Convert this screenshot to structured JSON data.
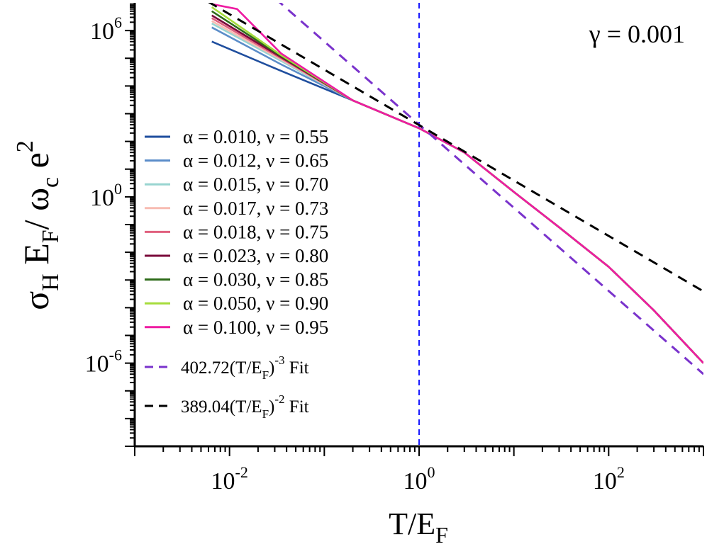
{
  "chart_data": {
    "type": "line",
    "scale": "log-log",
    "annotation": "γ = 0.001",
    "xlabel": "T/E_F",
    "ylabel": "σ_H E_F / ω_c e^2",
    "xlim": [
      0.001,
      1000
    ],
    "ylim": [
      1e-09,
      10000000.0
    ],
    "x_ticks": [
      {
        "value": 0.01,
        "base": "10",
        "exp": "-2"
      },
      {
        "value": 1,
        "base": "10",
        "exp": "0"
      },
      {
        "value": 100,
        "base": "10",
        "exp": "2"
      }
    ],
    "y_ticks": [
      {
        "value": 1e-06,
        "base": "10",
        "exp": "-6"
      },
      {
        "value": 1,
        "base": "10",
        "exp": "0"
      },
      {
        "value": 1000000.0,
        "base": "10",
        "exp": "6"
      }
    ],
    "vline_x": 1,
    "series": [
      {
        "alpha": "0.010",
        "nu": "0.55",
        "color": "#1f4e9e",
        "points": [
          [
            0.0065,
            400000.0
          ],
          [
            0.035,
            35000.0
          ],
          [
            0.2,
            3000
          ],
          [
            1,
            300
          ],
          [
            3,
            40
          ],
          [
            10,
            1.5
          ],
          [
            30,
            0.08
          ],
          [
            100,
            0.003
          ],
          [
            300,
            8e-05
          ],
          [
            1000,
            1e-06
          ]
        ]
      },
      {
        "alpha": "0.012",
        "nu": "0.65",
        "color": "#5b8dc9",
        "points": [
          [
            0.0065,
            1300000.0
          ],
          [
            0.035,
            60000.0
          ],
          [
            0.2,
            3000
          ],
          [
            1,
            300
          ],
          [
            3,
            40
          ],
          [
            10,
            1.5
          ],
          [
            30,
            0.08
          ],
          [
            100,
            0.003
          ],
          [
            300,
            8e-05
          ],
          [
            1000,
            1e-06
          ]
        ]
      },
      {
        "alpha": "0.015",
        "nu": "0.70",
        "color": "#98d4d0",
        "points": [
          [
            0.0065,
            1800000.0
          ],
          [
            0.035,
            80000.0
          ],
          [
            0.2,
            3000
          ],
          [
            1,
            300
          ],
          [
            3,
            40
          ],
          [
            10,
            1.5
          ],
          [
            30,
            0.08
          ],
          [
            100,
            0.003
          ],
          [
            300,
            8e-05
          ],
          [
            1000,
            1e-06
          ]
        ]
      },
      {
        "alpha": "0.017",
        "nu": "0.73",
        "color": "#f7bbb2",
        "points": [
          [
            0.0065,
            2200000.0
          ],
          [
            0.035,
            90000.0
          ],
          [
            0.2,
            3000
          ],
          [
            1,
            300
          ],
          [
            3,
            40
          ],
          [
            10,
            1.5
          ],
          [
            30,
            0.08
          ],
          [
            100,
            0.003
          ],
          [
            300,
            8e-05
          ],
          [
            1000,
            1e-06
          ]
        ]
      },
      {
        "alpha": "0.018",
        "nu": "0.75",
        "color": "#e0607e",
        "points": [
          [
            0.0065,
            2800000.0
          ],
          [
            0.035,
            100000.0
          ],
          [
            0.2,
            3000
          ],
          [
            1,
            300
          ],
          [
            3,
            40
          ],
          [
            10,
            1.5
          ],
          [
            30,
            0.08
          ],
          [
            100,
            0.003
          ],
          [
            300,
            8e-05
          ],
          [
            1000,
            1e-06
          ]
        ]
      },
      {
        "alpha": "0.023",
        "nu": "0.80",
        "color": "#7a0a3a",
        "points": [
          [
            0.0065,
            3500000.0
          ],
          [
            0.035,
            110000.0
          ],
          [
            0.2,
            3000
          ],
          [
            1,
            300
          ],
          [
            3,
            40
          ],
          [
            10,
            1.5
          ],
          [
            30,
            0.08
          ],
          [
            100,
            0.003
          ],
          [
            300,
            8e-05
          ],
          [
            1000,
            1e-06
          ]
        ]
      },
      {
        "alpha": "0.030",
        "nu": "0.85",
        "color": "#2e6b1a",
        "points": [
          [
            0.0065,
            5000000.0
          ],
          [
            0.035,
            120000.0
          ],
          [
            0.2,
            3000
          ],
          [
            1,
            300
          ],
          [
            3,
            40
          ],
          [
            10,
            1.5
          ],
          [
            30,
            0.08
          ],
          [
            100,
            0.003
          ],
          [
            300,
            8e-05
          ],
          [
            1000,
            1e-06
          ]
        ]
      },
      {
        "alpha": "0.050",
        "nu": "0.90",
        "color": "#a6dc3c",
        "points": [
          [
            0.0065,
            7000000.0
          ],
          [
            0.035,
            130000.0
          ],
          [
            0.2,
            3000
          ],
          [
            1,
            300
          ],
          [
            3,
            40
          ],
          [
            10,
            1.5
          ],
          [
            30,
            0.08
          ],
          [
            100,
            0.003
          ],
          [
            300,
            8e-05
          ],
          [
            1000,
            1e-06
          ]
        ]
      },
      {
        "alpha": "0.100",
        "nu": "0.95",
        "color": "#ee1ba2",
        "points": [
          [
            0.0065,
            9000000.0
          ],
          [
            0.012,
            6000000.0
          ],
          [
            0.035,
            150000.0
          ],
          [
            0.2,
            3000
          ],
          [
            1,
            300
          ],
          [
            3,
            40
          ],
          [
            10,
            1.5
          ],
          [
            30,
            0.08
          ],
          [
            100,
            0.003
          ],
          [
            300,
            8e-05
          ],
          [
            1000,
            1e-06
          ]
        ]
      }
    ],
    "fits": [
      {
        "coef": "402.72",
        "exp": "-3",
        "coef_value": 402.72,
        "power": -3,
        "color": "#7a33cc"
      },
      {
        "coef": "389.04",
        "exp": "-2",
        "coef_value": 389.04,
        "power": -2,
        "color": "#000000"
      }
    ],
    "legend_position": "left-center"
  }
}
